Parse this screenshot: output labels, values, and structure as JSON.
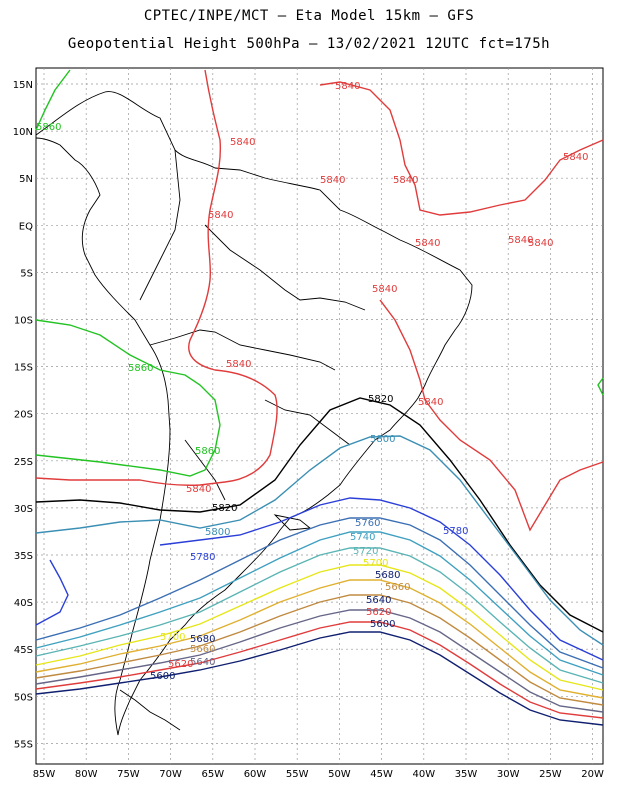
{
  "header": {
    "line1": "CPTEC/INPE/MCT –  Eta Model 15km – GFS",
    "line2": "Geopotential Height 500hPa – 13/02/2021 12UTC fct=175h"
  },
  "axes": {
    "lat_labels": [
      "15N",
      "10N",
      "5N",
      "EQ",
      "5S",
      "10S",
      "15S",
      "20S",
      "25S",
      "30S",
      "35S",
      "40S",
      "45S",
      "50S",
      "55S"
    ],
    "lon_labels": [
      "85W",
      "80W",
      "75W",
      "70W",
      "65W",
      "60W",
      "55W",
      "50W",
      "45W",
      "40W",
      "35W",
      "30W",
      "25W",
      "20W"
    ]
  },
  "contours": [
    {
      "value": "5840",
      "color": "#e03c3c"
    },
    {
      "value": "5860",
      "color": "#22c322"
    },
    {
      "value": "5820",
      "color": "#000000"
    },
    {
      "value": "5800",
      "color": "#3b8fb4"
    },
    {
      "value": "5780",
      "color": "#2a3fd8"
    },
    {
      "value": "5760",
      "color": "#3b6fb4"
    },
    {
      "value": "5740",
      "color": "#3fa0c0"
    },
    {
      "value": "5720",
      "color": "#5bb4b4"
    },
    {
      "value": "5700",
      "color": "#e6e61a"
    },
    {
      "value": "5680",
      "color": "#e0b030"
    },
    {
      "value": "5660",
      "color": "#c08a40"
    },
    {
      "value": "5640",
      "color": "#666688"
    },
    {
      "value": "5620",
      "color": "#e03c3c"
    },
    {
      "value": "5600",
      "color": "#102070"
    }
  ],
  "labels": {
    "l5840a": "5840",
    "l5840b": "5840",
    "l5840c": "5840",
    "l5840d": "5840",
    "l5840e": "5840",
    "l5840f": "5840",
    "l5840g": "5840",
    "l5840h": "5840",
    "l5840i": "5840",
    "l5840j": "5840",
    "l5840k": "5840",
    "l5840l": "5840",
    "l5860a": "5860",
    "l5860b": "5860",
    "l5860c": "5860",
    "l5820a": "5820",
    "l5820b": "5820",
    "l5800a": "5800",
    "l5800b": "5800",
    "l5780a": "5780",
    "l5780b": "5780",
    "l5760": "5760",
    "l5740": "5740",
    "l5720": "5720",
    "l5700a": "5700",
    "l5700b": "5700",
    "l5680a": "5680",
    "l5680b": "5680",
    "l5660a": "5660",
    "l5660b": "5660",
    "l5640a": "5640",
    "l5640b": "5640",
    "l5620a": "5620",
    "l5620b": "5620",
    "l5600a": "5600",
    "l5600b": "5600"
  }
}
